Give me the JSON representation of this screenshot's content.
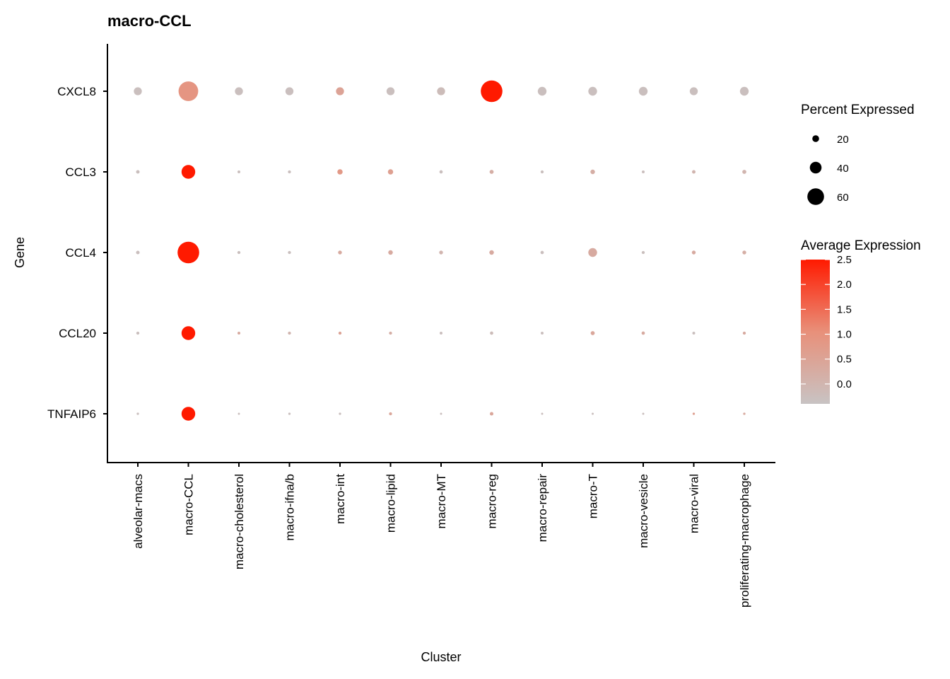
{
  "chart_data": {
    "type": "dot",
    "title": "macro-CCL",
    "xlabel": "Cluster",
    "ylabel": "Gene",
    "clusters": [
      "alveolar-macs",
      "macro-CCL",
      "macro-cholesterol",
      "macro-ifna/b",
      "macro-int",
      "macro-lipid",
      "macro-MT",
      "macro-reg",
      "macro-repair",
      "macro-T",
      "macro-vesicle",
      "macro-viral",
      "proliferating-macrophage"
    ],
    "genes": [
      "CXCL8",
      "CCL3",
      "CCL4",
      "CCL20",
      "TNFAIP6"
    ],
    "percent_expressed": [
      [
        25,
        72,
        25,
        25,
        25,
        25,
        25,
        80,
        28,
        28,
        28,
        25,
        28
      ],
      [
        7,
        48,
        4,
        5,
        14,
        14,
        6,
        9,
        5,
        11,
        4,
        7,
        9
      ],
      [
        7,
        80,
        5,
        5,
        8,
        11,
        8,
        11,
        6,
        28,
        5,
        8,
        8
      ],
      [
        5,
        48,
        4,
        5,
        5,
        5,
        4,
        6,
        4,
        9,
        6,
        4,
        5
      ],
      [
        2,
        48,
        1,
        2,
        2,
        5,
        1,
        7,
        1,
        1,
        1,
        2,
        2
      ]
    ],
    "average_expression": [
      [
        -0.3,
        0.9,
        -0.3,
        -0.3,
        0.5,
        -0.3,
        -0.2,
        2.5,
        -0.3,
        -0.3,
        -0.3,
        -0.3,
        -0.3
      ],
      [
        -0.3,
        2.5,
        -0.3,
        -0.3,
        0.8,
        0.6,
        -0.3,
        0.2,
        -0.3,
        0.2,
        -0.3,
        0.0,
        0.0
      ],
      [
        -0.3,
        2.5,
        -0.3,
        -0.3,
        0.3,
        0.3,
        0.0,
        0.3,
        -0.3,
        0.3,
        -0.3,
        0.3,
        0.2
      ],
      [
        -0.3,
        2.5,
        0.3,
        0.0,
        0.5,
        0.2,
        -0.3,
        -0.2,
        -0.3,
        0.4,
        0.3,
        -0.3,
        0.3
      ],
      [
        -0.3,
        2.5,
        -0.3,
        -0.3,
        -0.3,
        0.4,
        -0.3,
        0.4,
        -0.3,
        -0.3,
        -0.3,
        0.6,
        0.3
      ]
    ],
    "size_legend": {
      "title": "Percent Expressed",
      "values": [
        20,
        40,
        60
      ]
    },
    "color_legend": {
      "title": "Average Expression",
      "ticks": [
        "2.5",
        "2.0",
        "1.5",
        "1.0",
        "0.5",
        "0.0"
      ],
      "range": [
        -0.4,
        2.5
      ],
      "low_color": "#C8C3C3",
      "mid_color": "#E8907A",
      "high_color": "#FF1A00"
    },
    "legend_position": "right",
    "grid": false
  }
}
